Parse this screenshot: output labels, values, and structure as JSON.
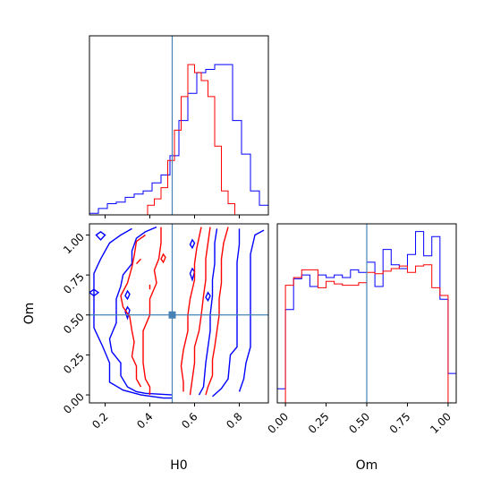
{
  "chart_data": {
    "type": "corner",
    "parameters": [
      "H0",
      "Om"
    ],
    "truth": {
      "H0": 0.5,
      "Om": 0.5
    },
    "truth_color": "#4682b4",
    "series": [
      {
        "color": "#0000ff"
      },
      {
        "color": "#ff0000"
      }
    ],
    "panels": {
      "H0_hist": {
        "xlim": [
          0.13,
          0.93
        ],
        "ylim": [
          0,
          1.12
        ],
        "series": [
          {
            "color": "#0000ff",
            "bins": [
              0.13,
              0.17,
              0.21,
              0.25,
              0.29,
              0.33,
              0.37,
              0.41,
              0.45,
              0.49,
              0.53,
              0.57,
              0.61,
              0.65,
              0.69,
              0.73,
              0.77,
              0.81,
              0.85,
              0.89
            ],
            "values": [
              0.01,
              0.04,
              0.07,
              0.08,
              0.11,
              0.13,
              0.15,
              0.2,
              0.25,
              0.37,
              0.59,
              0.76,
              0.89,
              0.91,
              0.94,
              0.94,
              0.59,
              0.38,
              0.15,
              0.06
            ]
          },
          {
            "color": "#ff0000",
            "bins": [
              0.39,
              0.42,
              0.45,
              0.48,
              0.51,
              0.54,
              0.57,
              0.6,
              0.63,
              0.66,
              0.69,
              0.72,
              0.75,
              0.78
            ],
            "values": [
              0.06,
              0.1,
              0.17,
              0.34,
              0.53,
              0.74,
              0.94,
              0.89,
              0.84,
              0.74,
              0.43,
              0.15,
              0.07,
              0.0
            ]
          }
        ]
      },
      "Om_hist": {
        "xlim": [
          -0.05,
          1.05
        ],
        "ylim": [
          0,
          1.4
        ],
        "series": [
          {
            "color": "#0000ff",
            "bins": [
              -0.05,
              0.0,
              0.05,
              0.1,
              0.15,
              0.2,
              0.25,
              0.3,
              0.35,
              0.4,
              0.45,
              0.5,
              0.55,
              0.6,
              0.65,
              0.7,
              0.75,
              0.8,
              0.85,
              0.9,
              0.95,
              1.0,
              1.05
            ],
            "values": [
              0.11,
              0.73,
              0.97,
              1.0,
              0.91,
              1.0,
              0.98,
              1.0,
              0.98,
              1.04,
              1.02,
              1.1,
              0.91,
              1.2,
              1.08,
              1.05,
              1.16,
              1.34,
              1.15,
              1.3,
              0.81,
              0.23
            ]
          },
          {
            "color": "#ff0000",
            "bins": [
              0.0,
              0.05,
              0.1,
              0.15,
              0.2,
              0.25,
              0.3,
              0.35,
              0.4,
              0.45,
              0.5,
              0.55,
              0.6,
              0.65,
              0.7,
              0.75,
              0.8,
              0.85,
              0.9,
              0.95,
              1.0
            ],
            "values": [
              0.92,
              0.98,
              1.04,
              1.04,
              0.9,
              0.95,
              0.93,
              0.92,
              0.92,
              0.94,
              1.02,
              1.01,
              1.03,
              1.05,
              1.07,
              1.02,
              1.07,
              1.08,
              0.9,
              0.84
            ]
          }
        ]
      },
      "joint": {
        "xlim": [
          0.13,
          0.93
        ],
        "ylim": [
          -0.05,
          1.07
        ],
        "xticks": [
          0.2,
          0.4,
          0.6,
          0.8
        ],
        "xtick_labels": [
          "0.2",
          "0.4",
          "0.6",
          "0.8"
        ],
        "yticks": [
          0.0,
          0.25,
          0.5,
          0.75,
          1.0
        ],
        "ytick_labels": [
          "0.00",
          "0.25",
          "0.50",
          "0.75",
          "1.00"
        ],
        "xlabel": "H0",
        "ylabel": "Om",
        "contours": [
          {
            "color": "#0000ff",
            "points": [
              [
                0.32,
                1.04
              ],
              [
                0.27,
                1.0
              ],
              [
                0.22,
                0.95
              ],
              [
                0.18,
                0.85
              ],
              [
                0.15,
                0.76
              ],
              [
                0.15,
                0.68
              ],
              [
                0.15,
                0.58
              ],
              [
                0.15,
                0.52
              ],
              [
                0.15,
                0.42
              ],
              [
                0.19,
                0.3
              ],
              [
                0.22,
                0.2
              ],
              [
                0.22,
                0.08
              ],
              [
                0.28,
                0.03
              ],
              [
                0.36,
                0.0
              ],
              [
                0.46,
                -0.02
              ],
              [
                0.5,
                -0.02
              ]
            ]
          },
          {
            "color": "#0000ff",
            "points": [
              [
                0.8,
                1.04
              ],
              [
                0.8,
                0.94
              ],
              [
                0.79,
                0.83
              ],
              [
                0.79,
                0.75
              ],
              [
                0.79,
                0.6
              ],
              [
                0.79,
                0.45
              ],
              [
                0.79,
                0.3
              ],
              [
                0.76,
                0.25
              ],
              [
                0.75,
                0.1
              ],
              [
                0.72,
                0.04
              ],
              [
                0.68,
                -0.01
              ]
            ]
          },
          {
            "color": "#0000ff",
            "points": [
              [
                0.43,
                1.05
              ],
              [
                0.38,
                1.02
              ],
              [
                0.34,
                0.98
              ],
              [
                0.32,
                0.9
              ],
              [
                0.32,
                0.82
              ],
              [
                0.28,
                0.75
              ],
              [
                0.27,
                0.68
              ],
              [
                0.25,
                0.6
              ],
              [
                0.25,
                0.45
              ],
              [
                0.22,
                0.35
              ],
              [
                0.23,
                0.27
              ],
              [
                0.27,
                0.2
              ],
              [
                0.27,
                0.12
              ],
              [
                0.3,
                0.05
              ],
              [
                0.34,
                0.02
              ],
              [
                0.38,
                0.01
              ],
              [
                0.5,
                0.0
              ]
            ]
          },
          {
            "color": "#0000ff",
            "points": [
              [
                0.7,
                1.04
              ],
              [
                0.69,
                0.95
              ],
              [
                0.69,
                0.82
              ],
              [
                0.68,
                0.72
              ],
              [
                0.68,
                0.62
              ],
              [
                0.67,
                0.5
              ],
              [
                0.67,
                0.4
              ],
              [
                0.65,
                0.2
              ],
              [
                0.64,
                0.05
              ],
              [
                0.62,
                0.0
              ]
            ]
          },
          {
            "color": "#0000ff",
            "points": [
              [
                0.91,
                1.03
              ],
              [
                0.87,
                1.0
              ],
              [
                0.85,
                0.88
              ],
              [
                0.85,
                0.72
              ],
              [
                0.85,
                0.55
              ],
              [
                0.85,
                0.4
              ],
              [
                0.85,
                0.3
              ],
              [
                0.83,
                0.2
              ],
              [
                0.82,
                0.1
              ],
              [
                0.8,
                0.02
              ]
            ]
          },
          {
            "color": "#0000ff",
            "closed": true,
            "points": [
              [
                0.15,
                0.62
              ],
              [
                0.17,
                0.64
              ],
              [
                0.15,
                0.66
              ],
              [
                0.13,
                0.64
              ]
            ]
          },
          {
            "color": "#0000ff",
            "closed": true,
            "points": [
              [
                0.3,
                0.48
              ],
              [
                0.31,
                0.53
              ],
              [
                0.3,
                0.55
              ],
              [
                0.29,
                0.52
              ]
            ]
          },
          {
            "color": "#0000ff",
            "closed": true,
            "points": [
              [
                0.18,
                0.97
              ],
              [
                0.2,
                1.0
              ],
              [
                0.18,
                1.02
              ],
              [
                0.16,
                1.0
              ]
            ]
          },
          {
            "color": "#0000ff",
            "closed": true,
            "points": [
              [
                0.3,
                0.6
              ],
              [
                0.31,
                0.63
              ],
              [
                0.3,
                0.65
              ],
              [
                0.29,
                0.62
              ]
            ]
          },
          {
            "color": "#0000ff",
            "closed": true,
            "points": [
              [
                0.59,
                0.72
              ],
              [
                0.6,
                0.77
              ],
              [
                0.59,
                0.79
              ],
              [
                0.58,
                0.76
              ]
            ]
          },
          {
            "color": "#0000ff",
            "closed": true,
            "points": [
              [
                0.59,
                0.92
              ],
              [
                0.6,
                0.95
              ],
              [
                0.59,
                0.97
              ],
              [
                0.58,
                0.94
              ]
            ]
          },
          {
            "color": "#0000ff",
            "closed": true,
            "points": [
              [
                0.66,
                0.59
              ],
              [
                0.67,
                0.62
              ],
              [
                0.66,
                0.64
              ],
              [
                0.65,
                0.61
              ]
            ]
          },
          {
            "color": "#ff0000",
            "points": [
              [
                0.38,
                1.0
              ],
              [
                0.34,
                0.96
              ],
              [
                0.33,
                0.87
              ],
              [
                0.32,
                0.8
              ],
              [
                0.3,
                0.7
              ],
              [
                0.27,
                0.62
              ],
              [
                0.28,
                0.55
              ],
              [
                0.31,
                0.49
              ],
              [
                0.32,
                0.4
              ],
              [
                0.33,
                0.33
              ],
              [
                0.32,
                0.24
              ],
              [
                0.34,
                0.18
              ],
              [
                0.34,
                0.1
              ],
              [
                0.36,
                0.05
              ]
            ]
          },
          {
            "color": "#ff0000",
            "points": [
              [
                0.45,
                1.05
              ],
              [
                0.45,
                0.95
              ],
              [
                0.44,
                0.85
              ],
              [
                0.42,
                0.78
              ],
              [
                0.43,
                0.7
              ],
              [
                0.4,
                0.6
              ],
              [
                0.4,
                0.5
              ],
              [
                0.37,
                0.4
              ],
              [
                0.37,
                0.3
              ],
              [
                0.37,
                0.2
              ],
              [
                0.38,
                0.1
              ],
              [
                0.4,
                0.05
              ],
              [
                0.4,
                0.0
              ]
            ]
          },
          {
            "color": "#ff0000",
            "points": [
              [
                0.63,
                1.05
              ],
              [
                0.61,
                0.92
              ],
              [
                0.6,
                0.82
              ],
              [
                0.6,
                0.72
              ],
              [
                0.58,
                0.6
              ],
              [
                0.57,
                0.5
              ],
              [
                0.57,
                0.4
              ],
              [
                0.55,
                0.28
              ],
              [
                0.54,
                0.18
              ],
              [
                0.55,
                0.08
              ],
              [
                0.55,
                0.02
              ]
            ]
          },
          {
            "color": "#ff0000",
            "points": [
              [
                0.67,
                1.05
              ],
              [
                0.66,
                0.95
              ],
              [
                0.65,
                0.85
              ],
              [
                0.65,
                0.72
              ],
              [
                0.64,
                0.62
              ],
              [
                0.63,
                0.5
              ],
              [
                0.62,
                0.4
              ],
              [
                0.6,
                0.3
              ],
              [
                0.6,
                0.2
              ],
              [
                0.59,
                0.1
              ],
              [
                0.58,
                0.0
              ]
            ]
          },
          {
            "color": "#ff0000",
            "points": [
              [
                0.75,
                1.05
              ],
              [
                0.73,
                0.95
              ],
              [
                0.72,
                0.85
              ],
              [
                0.72,
                0.7
              ],
              [
                0.71,
                0.6
              ],
              [
                0.71,
                0.5
              ],
              [
                0.7,
                0.4
              ],
              [
                0.69,
                0.3
              ],
              [
                0.68,
                0.22
              ],
              [
                0.68,
                0.12
              ],
              [
                0.66,
                0.05
              ],
              [
                0.65,
                0.0
              ]
            ]
          },
          {
            "color": "#ff0000",
            "closed": true,
            "points": [
              [
                0.46,
                0.83
              ],
              [
                0.47,
                0.86
              ],
              [
                0.46,
                0.88
              ],
              [
                0.45,
                0.85
              ]
            ]
          },
          {
            "color": "#ff0000",
            "points": [
              [
                0.4,
                0.69
              ],
              [
                0.4,
                0.66
              ]
            ]
          },
          {
            "color": "#ff0000",
            "points": [
              [
                0.34,
                0.82
              ],
              [
                0.36,
                0.85
              ]
            ]
          }
        ]
      },
      "Om_hist_axis": {
        "xticks": [
          0.0,
          0.25,
          0.5,
          0.75,
          1.0
        ],
        "xtick_labels": [
          "0.00",
          "0.25",
          "0.50",
          "0.75",
          "1.00"
        ],
        "xlabel": "Om"
      }
    }
  }
}
